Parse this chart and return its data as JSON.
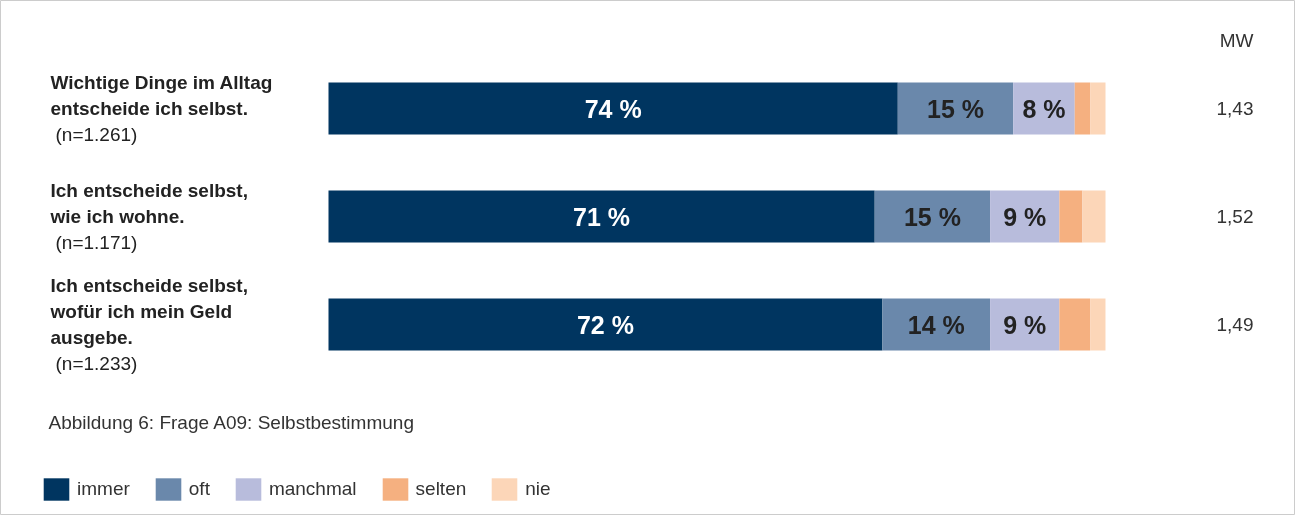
{
  "chart_data": {
    "type": "bar",
    "orientation": "horizontal",
    "stacked": true,
    "categories": [
      "Wichtige Dinge im Alltag\nentscheide ich selbst.\n(n=1.261)",
      "Ich entscheide selbst,\nwie ich wohne.\n(n=1.171)",
      "Ich entscheide selbst,\nwofür ich mein Geld\nausgebe.\n(n=1.233)"
    ],
    "series": [
      {
        "name": "immer",
        "color": "#003560",
        "values": [
          74,
          71,
          72
        ],
        "value_labels": [
          "74 %",
          "71 %",
          "72 %"
        ]
      },
      {
        "name": "oft",
        "color": "#6a88ab",
        "values": [
          15,
          15,
          14
        ],
        "value_labels": [
          "15 %",
          "15 %",
          "14 %"
        ]
      },
      {
        "name": "manchmal",
        "color": "#b8bcdc",
        "values": [
          8,
          9,
          9
        ],
        "value_labels": [
          "8 %",
          "9 %",
          "9 %"
        ]
      },
      {
        "name": "selten",
        "color": "#f5b080",
        "values": [
          2,
          3,
          4
        ],
        "value_labels": [
          null,
          null,
          null
        ]
      },
      {
        "name": "nie",
        "color": "#fcd6b8",
        "values": [
          2,
          3,
          2
        ],
        "value_labels": [
          null,
          null,
          null
        ]
      }
    ],
    "xlim": [
      0,
      101
    ],
    "legend": "bottom left",
    "annotations": [
      "MW",
      "1,43",
      "1,52",
      "1,49",
      "Abbildung 6: Frage A09: Selbstbestimmung"
    ]
  }
}
